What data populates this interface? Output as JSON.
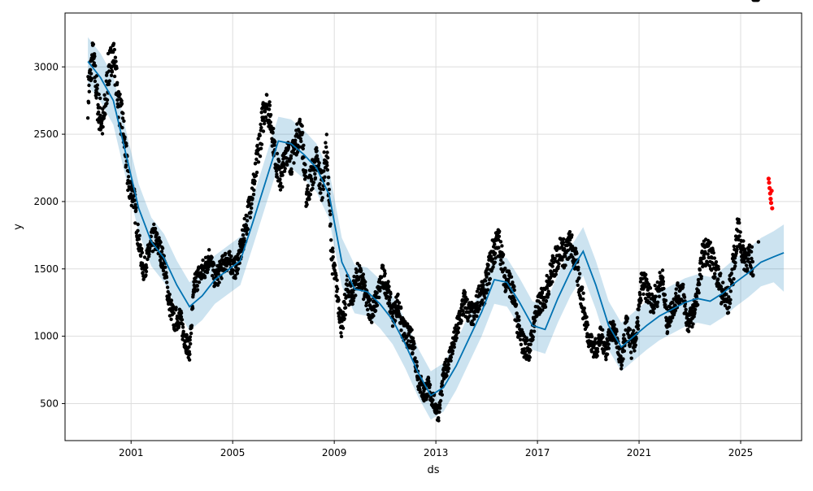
{
  "chart_data": {
    "type": "line",
    "title": "",
    "xlabel": "ds",
    "ylabel": "y",
    "xlim": [
      1998.4,
      2027.4
    ],
    "ylim": [
      225,
      3400
    ],
    "x_ticks": [
      2001,
      2005,
      2009,
      2013,
      2017,
      2021,
      2025
    ],
    "x_tick_labels": [
      "2001",
      "2005",
      "2009",
      "2013",
      "2017",
      "2021",
      "2025"
    ],
    "y_ticks": [
      500,
      1000,
      1500,
      2000,
      2500,
      3000
    ],
    "y_tick_labels": [
      "500",
      "1000",
      "1500",
      "2000",
      "2500",
      "3000"
    ],
    "grid": true,
    "legend": "none",
    "colors": {
      "observed": "#000000",
      "forecast_line": "#0072B2",
      "uncertainty_band": "#0072B2",
      "band_opacity": 0.2,
      "highlighted_points": "#ff0000"
    },
    "series": [
      {
        "name": "",
        "role": "observed",
        "x": [
          1999.3,
          1999.5,
          1999.7,
          1999.9,
          2000.1,
          2000.3,
          2000.5,
          2000.7,
          2000.9,
          2001.1,
          2001.3,
          2001.5,
          2001.7,
          2001.9,
          2002.1,
          2002.3,
          2002.5,
          2002.7,
          2002.9,
          2003.1,
          2003.3,
          2003.5,
          2003.7,
          2003.9,
          2004.1,
          2004.3,
          2004.5,
          2004.7,
          2004.9,
          2005.1,
          2005.3,
          2005.5,
          2005.7,
          2005.9,
          2006.1,
          2006.3,
          2006.5,
          2006.7,
          2006.9,
          2007.1,
          2007.3,
          2007.5,
          2007.7,
          2007.9,
          2008.1,
          2008.3,
          2008.5,
          2008.7,
          2008.9,
          2009.1,
          2009.3,
          2009.5,
          2009.7,
          2009.9,
          2010.1,
          2010.3,
          2010.5,
          2010.7,
          2010.9,
          2011.1,
          2011.3,
          2011.5,
          2011.7,
          2011.9,
          2012.1,
          2012.3,
          2012.5,
          2012.7,
          2012.9,
          2013.1,
          2013.3,
          2013.5,
          2013.7,
          2013.9,
          2014.1,
          2014.3,
          2014.5,
          2014.7,
          2014.9,
          2015.1,
          2015.3,
          2015.5,
          2015.7,
          2015.9,
          2016.1,
          2016.3,
          2016.5,
          2016.7,
          2016.9,
          2017.1,
          2017.3,
          2017.5,
          2017.7,
          2017.9,
          2018.1,
          2018.3,
          2018.5,
          2018.7,
          2018.9,
          2019.1,
          2019.3,
          2019.5,
          2019.7,
          2019.9,
          2020.1,
          2020.3,
          2020.5,
          2020.7,
          2020.9,
          2021.1,
          2021.3,
          2021.5,
          2021.7,
          2021.9,
          2022.1,
          2022.3,
          2022.5,
          2022.7,
          2022.9,
          2023.1,
          2023.3,
          2023.5,
          2023.7,
          2023.9,
          2024.1,
          2024.3,
          2024.5,
          2024.7,
          2024.9,
          2025.1,
          2025.3,
          2025.5,
          2025.7
        ],
        "y": [
          2780,
          3100,
          2700,
          2560,
          2950,
          3120,
          2750,
          2520,
          2120,
          2050,
          1700,
          1480,
          1620,
          1740,
          1660,
          1540,
          1250,
          1120,
          1150,
          1000,
          890,
          1390,
          1460,
          1500,
          1600,
          1420,
          1480,
          1560,
          1550,
          1500,
          1620,
          1800,
          2000,
          2200,
          2500,
          2750,
          2600,
          2300,
          2150,
          2400,
          2300,
          2450,
          2550,
          2050,
          2180,
          2300,
          2100,
          2400,
          1600,
          1350,
          1050,
          1350,
          1300,
          1450,
          1400,
          1250,
          1180,
          1300,
          1450,
          1350,
          1150,
          1250,
          1050,
          1000,
          950,
          700,
          580,
          620,
          520,
          420,
          700,
          820,
          950,
          1100,
          1250,
          1180,
          1150,
          1300,
          1320,
          1500,
          1650,
          1700,
          1450,
          1400,
          1250,
          1000,
          920,
          900,
          1150,
          1250,
          1300,
          1450,
          1550,
          1650,
          1600,
          1700,
          1550,
          1350,
          1100,
          950,
          900,
          1000,
          900,
          1050,
          1000,
          760,
          1100,
          920,
          1000,
          1400,
          1350,
          1250,
          1300,
          1450,
          1100,
          1200,
          1300,
          1350,
          1100,
          1150,
          1300,
          1600,
          1650,
          1550,
          1450,
          1300,
          1250,
          1500,
          1800,
          1600,
          1580,
          1550,
          1700
        ],
        "spread": [
          160,
          120,
          150,
          140,
          150,
          110,
          140,
          150,
          120,
          110,
          90,
          80,
          90,
          100,
          90,
          90,
          90,
          90,
          90,
          90,
          70,
          90,
          90,
          90,
          80,
          80,
          80,
          80,
          80,
          80,
          90,
          110,
          110,
          120,
          140,
          120,
          110,
          100,
          110,
          110,
          110,
          110,
          120,
          120,
          120,
          120,
          130,
          110,
          110,
          90,
          90,
          110,
          100,
          100,
          100,
          90,
          90,
          80,
          90,
          90,
          80,
          90,
          90,
          90,
          90,
          90,
          80,
          80,
          70,
          60,
          70,
          70,
          80,
          90,
          110,
          90,
          90,
          100,
          90,
          120,
          130,
          110,
          110,
          110,
          110,
          100,
          90,
          80,
          90,
          90,
          100,
          100,
          110,
          110,
          110,
          100,
          110,
          120,
          100,
          80,
          80,
          80,
          80,
          80,
          80,
          80,
          80,
          90,
          90,
          100,
          100,
          90,
          100,
          100,
          90,
          80,
          90,
          90,
          90,
          80,
          80,
          100,
          120,
          100,
          100,
          110,
          120,
          120,
          110,
          110,
          110,
          110
        ]
      },
      {
        "name": "",
        "role": "forecast",
        "x": [
          1999.3,
          1999.8,
          2000.3,
          2000.8,
          2001.3,
          2001.8,
          2002.3,
          2002.8,
          2003.3,
          2003.8,
          2004.3,
          2004.8,
          2005.3,
          2005.8,
          2006.3,
          2006.8,
          2007.3,
          2007.8,
          2008.3,
          2008.8,
          2009.3,
          2009.8,
          2010.3,
          2010.8,
          2011.3,
          2011.8,
          2012.3,
          2012.8,
          2013.3,
          2013.8,
          2014.3,
          2014.8,
          2015.3,
          2015.8,
          2016.3,
          2016.8,
          2017.3,
          2017.8,
          2018.3,
          2018.8,
          2019.3,
          2019.8,
          2020.3,
          2020.8,
          2021.3,
          2021.8,
          2022.3,
          2022.8,
          2023.3,
          2023.8,
          2024.3,
          2024.8,
          2025.3,
          2025.8,
          2026.3,
          2026.7
        ],
        "y": [
          3040,
          2920,
          2750,
          2350,
          1950,
          1700,
          1580,
          1380,
          1220,
          1300,
          1420,
          1490,
          1560,
          1850,
          2150,
          2450,
          2430,
          2350,
          2250,
          2050,
          1550,
          1350,
          1330,
          1240,
          1120,
          940,
          730,
          560,
          620,
          780,
          980,
          1180,
          1420,
          1400,
          1250,
          1080,
          1050,
          1280,
          1480,
          1630,
          1380,
          1080,
          920,
          1000,
          1080,
          1150,
          1200,
          1250,
          1280,
          1260,
          1320,
          1400,
          1470,
          1550,
          1590,
          1620
        ],
        "y_lower": [
          2860,
          2740,
          2570,
          2170,
          1770,
          1520,
          1400,
          1200,
          1040,
          1120,
          1240,
          1310,
          1380,
          1670,
          1970,
          2270,
          2250,
          2170,
          2070,
          1870,
          1370,
          1170,
          1150,
          1060,
          940,
          760,
          550,
          380,
          440,
          600,
          800,
          1000,
          1240,
          1220,
          1070,
          900,
          870,
          1100,
          1300,
          1450,
          1200,
          900,
          740,
          820,
          900,
          970,
          1020,
          1070,
          1100,
          1080,
          1140,
          1220,
          1290,
          1370,
          1400,
          1330
        ],
        "y_upper": [
          3220,
          3100,
          2930,
          2530,
          2130,
          1880,
          1760,
          1560,
          1400,
          1480,
          1600,
          1670,
          1740,
          2030,
          2330,
          2630,
          2610,
          2530,
          2430,
          2230,
          1730,
          1530,
          1510,
          1420,
          1300,
          1120,
          910,
          740,
          800,
          960,
          1160,
          1360,
          1600,
          1580,
          1430,
          1260,
          1230,
          1460,
          1660,
          1810,
          1560,
          1260,
          1100,
          1180,
          1260,
          1330,
          1380,
          1430,
          1460,
          1440,
          1500,
          1580,
          1650,
          1730,
          1780,
          1830
        ]
      },
      {
        "name": "",
        "role": "highlighted",
        "x": [
          2026.1,
          2026.12,
          2026.14,
          2026.16,
          2026.18,
          2026.2,
          2026.22,
          2026.24
        ],
        "y": [
          2170,
          2140,
          2100,
          2060,
          2020,
          1990,
          2080,
          1950
        ]
      }
    ]
  }
}
